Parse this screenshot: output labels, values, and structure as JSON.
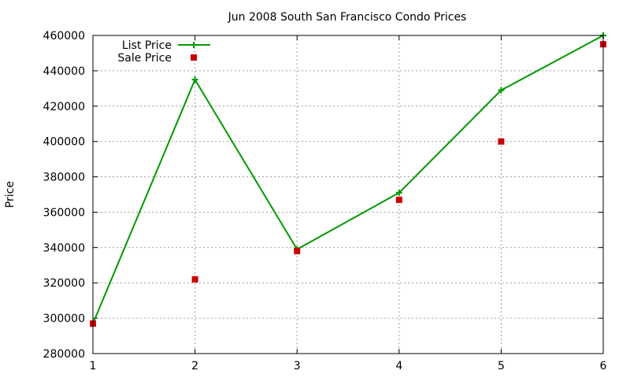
{
  "chart_data": {
    "type": "line",
    "title": "Jun 2008 South San Francisco Condo Prices",
    "xlabel": "",
    "ylabel": "Price",
    "x": [
      1,
      2,
      3,
      4,
      5,
      6
    ],
    "xlim": [
      1,
      6
    ],
    "ylim": [
      280000,
      460000
    ],
    "xticks": [
      "1",
      "2",
      "3",
      "4",
      "5",
      "6"
    ],
    "yticks": [
      "280000",
      "300000",
      "320000",
      "340000",
      "360000",
      "380000",
      "400000",
      "420000",
      "440000",
      "460000"
    ],
    "grid": true,
    "legend_position": "top-left",
    "series": [
      {
        "name": "List Price",
        "style": "linespoints",
        "marker": "plus",
        "color": "#009900",
        "values": [
          297000,
          435000,
          339000,
          371000,
          429000,
          460000
        ]
      },
      {
        "name": "Sale Price",
        "style": "points",
        "marker": "square",
        "color": "#cc0000",
        "values": [
          297000,
          322000,
          338000,
          367000,
          400000,
          455000
        ]
      }
    ]
  }
}
